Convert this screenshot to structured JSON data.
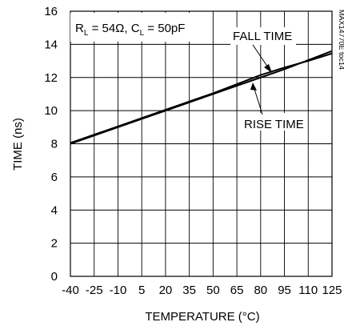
{
  "chart_data": {
    "type": "line",
    "xlabel": "TEMPERATURE (°C)",
    "ylabel": "TIME (ns)",
    "xlim": [
      -40,
      125
    ],
    "ylim": [
      0,
      16
    ],
    "x_ticks": [
      -40,
      -25,
      -10,
      5,
      20,
      35,
      50,
      65,
      80,
      95,
      110,
      125
    ],
    "y_ticks": [
      0,
      2,
      4,
      6,
      8,
      10,
      12,
      14,
      16
    ],
    "grid": true,
    "conditions": {
      "r_main": "R",
      "r_sub": "L",
      "r_value": " = 54Ω, ",
      "c_main": "C",
      "c_sub": "L",
      "c_value": " = 50pF"
    },
    "figure_code": "MAX14770E toc14",
    "series": [
      {
        "name": "FALL TIME",
        "x": [
          -40,
          -25,
          -10,
          5,
          20,
          35,
          50,
          65,
          80,
          95,
          110,
          125
        ],
        "y": [
          8.05,
          8.55,
          9.05,
          9.55,
          10.05,
          10.55,
          11.05,
          11.6,
          12.15,
          12.6,
          13.0,
          13.45
        ]
      },
      {
        "name": "RISE TIME",
        "x": [
          -40,
          -25,
          -10,
          5,
          20,
          35,
          50,
          65,
          80,
          95,
          110,
          125
        ],
        "y": [
          8.0,
          8.5,
          9.0,
          9.5,
          10.0,
          10.5,
          11.0,
          11.5,
          12.0,
          12.5,
          13.05,
          13.6
        ]
      }
    ]
  }
}
